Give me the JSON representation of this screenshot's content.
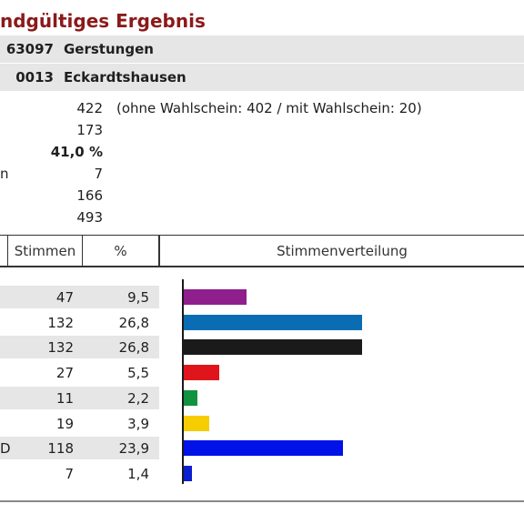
{
  "title": "ndgültiges Ergebnis",
  "location": {
    "kreis_code": "63097",
    "kreis_name": "Gerstungen",
    "ort_code": "0013",
    "ort_name": "Eckardtshausen"
  },
  "stats": [
    {
      "label": "",
      "value": "422",
      "note": "(ohne Wahlschein: 402 / mit Wahlschein: 20)",
      "bold": false
    },
    {
      "label": "",
      "value": "173",
      "note": "",
      "bold": false
    },
    {
      "label": "",
      "value": "41,0 %",
      "note": "",
      "bold": true
    },
    {
      "label": "n",
      "value": "7",
      "note": "",
      "bold": false
    },
    {
      "label": "",
      "value": "166",
      "note": "",
      "bold": false
    },
    {
      "label": "",
      "value": "493",
      "note": "",
      "bold": false
    }
  ],
  "table": {
    "headers": {
      "stimmen": "Stimmen",
      "prozent": "%",
      "verteilung": "Stimmenverteilung"
    },
    "rows": [
      {
        "label": "",
        "stimmen": "47",
        "prozent": "9,5",
        "percent": 9.5,
        "color": "#8e1f8c"
      },
      {
        "label": "",
        "stimmen": "132",
        "prozent": "26,8",
        "percent": 26.8,
        "color": "#0a6db4"
      },
      {
        "label": "",
        "stimmen": "132",
        "prozent": "26,8",
        "percent": 26.8,
        "color": "#1a1a1a"
      },
      {
        "label": "",
        "stimmen": "27",
        "prozent": "5,5",
        "percent": 5.5,
        "color": "#e0151b"
      },
      {
        "label": "",
        "stimmen": "11",
        "prozent": "2,2",
        "percent": 2.2,
        "color": "#12923e"
      },
      {
        "label": "",
        "stimmen": "19",
        "prozent": "3,9",
        "percent": 3.9,
        "color": "#f6cd00"
      },
      {
        "label": "D",
        "stimmen": "118",
        "prozent": "23,9",
        "percent": 23.9,
        "color": "#0012e8"
      },
      {
        "label": "",
        "stimmen": "7",
        "prozent": "1,4",
        "percent": 1.4,
        "color": "#0a1fd0"
      }
    ]
  }
}
